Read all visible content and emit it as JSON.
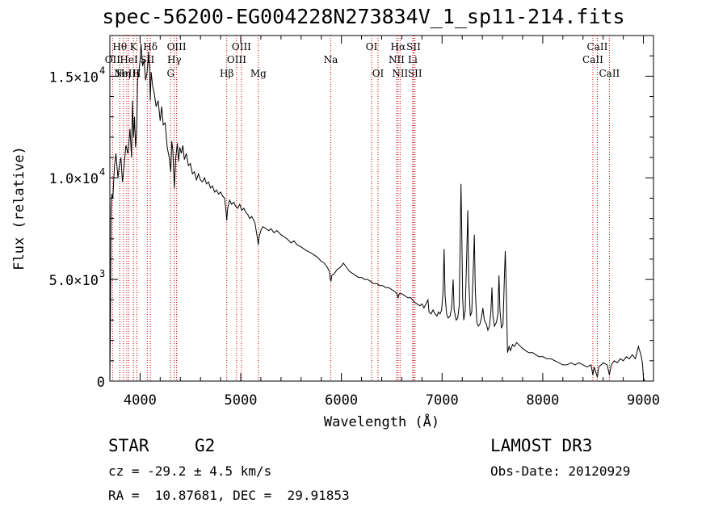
{
  "chart_data": {
    "type": "line",
    "title": "spec-56200-EG004228N273834V_1_sp11-214.fits",
    "xlabel": "Wavelength (Å)",
    "ylabel": "Flux (relative)",
    "xlim": [
      3700,
      9100
    ],
    "ylim": [
      0,
      17000
    ],
    "x_ticks": [
      {
        "value": 4000,
        "label": "4000"
      },
      {
        "value": 5000,
        "label": "5000"
      },
      {
        "value": 6000,
        "label": "6000"
      },
      {
        "value": 7000,
        "label": "7000"
      },
      {
        "value": 8000,
        "label": "8000"
      },
      {
        "value": 9000,
        "label": "9000"
      }
    ],
    "y_ticks": [
      {
        "value": 0,
        "base": "0",
        "exp": ""
      },
      {
        "value": 5000,
        "base": "5.0×10",
        "exp": "3"
      },
      {
        "value": 10000,
        "base": "1.0×10",
        "exp": "4"
      },
      {
        "value": 15000,
        "base": "1.5×10",
        "exp": "4"
      }
    ],
    "spectrum": [
      [
        3700,
        0
      ],
      [
        3705,
        2500
      ],
      [
        3712,
        8500
      ],
      [
        3720,
        9200
      ],
      [
        3730,
        9000
      ],
      [
        3745,
        10500
      ],
      [
        3760,
        11200
      ],
      [
        3780,
        10000
      ],
      [
        3795,
        10600
      ],
      [
        3810,
        11000
      ],
      [
        3825,
        9800
      ],
      [
        3840,
        10500
      ],
      [
        3860,
        11600
      ],
      [
        3880,
        11200
      ],
      [
        3900,
        12400
      ],
      [
        3915,
        11000
      ],
      [
        3925,
        13800
      ],
      [
        3935,
        12000
      ],
      [
        3945,
        13000
      ],
      [
        3955,
        11500
      ],
      [
        3968,
        12500
      ],
      [
        3975,
        14800
      ],
      [
        3990,
        15200
      ],
      [
        4000,
        15800
      ],
      [
        4010,
        16600
      ],
      [
        4025,
        15500
      ],
      [
        4040,
        15800
      ],
      [
        4055,
        14800
      ],
      [
        4070,
        15200
      ],
      [
        4085,
        16200
      ],
      [
        4095,
        15400
      ],
      [
        4101,
        13800
      ],
      [
        4110,
        15200
      ],
      [
        4125,
        14500
      ],
      [
        4140,
        14200
      ],
      [
        4160,
        13500
      ],
      [
        4180,
        13800
      ],
      [
        4200,
        12800
      ],
      [
        4215,
        13500
      ],
      [
        4230,
        12600
      ],
      [
        4250,
        12700
      ],
      [
        4270,
        11500
      ],
      [
        4290,
        11000
      ],
      [
        4305,
        10300
      ],
      [
        4315,
        11800
      ],
      [
        4325,
        11400
      ],
      [
        4340,
        9500
      ],
      [
        4355,
        11000
      ],
      [
        4370,
        11700
      ],
      [
        4383,
        10800
      ],
      [
        4395,
        11500
      ],
      [
        4410,
        11200
      ],
      [
        4425,
        11600
      ],
      [
        4440,
        10900
      ],
      [
        4460,
        11200
      ],
      [
        4480,
        10600
      ],
      [
        4500,
        10700
      ],
      [
        4520,
        10200
      ],
      [
        4540,
        10300
      ],
      [
        4560,
        9900
      ],
      [
        4580,
        10200
      ],
      [
        4600,
        9900
      ],
      [
        4620,
        9800
      ],
      [
        4640,
        10000
      ],
      [
        4660,
        9700
      ],
      [
        4680,
        9800
      ],
      [
        4700,
        9500
      ],
      [
        4720,
        9600
      ],
      [
        4740,
        9300
      ],
      [
        4760,
        9400
      ],
      [
        4780,
        9200
      ],
      [
        4800,
        9300
      ],
      [
        4820,
        9100
      ],
      [
        4840,
        9000
      ],
      [
        4855,
        8300
      ],
      [
        4861,
        7900
      ],
      [
        4870,
        8500
      ],
      [
        4890,
        8900
      ],
      [
        4910,
        8700
      ],
      [
        4930,
        8800
      ],
      [
        4950,
        8600
      ],
      [
        4970,
        8500
      ],
      [
        4990,
        8700
      ],
      [
        5010,
        8400
      ],
      [
        5030,
        8500
      ],
      [
        5050,
        8300
      ],
      [
        5070,
        8200
      ],
      [
        5090,
        8000
      ],
      [
        5110,
        8100
      ],
      [
        5140,
        7800
      ],
      [
        5167,
        7000
      ],
      [
        5175,
        6700
      ],
      [
        5183,
        7100
      ],
      [
        5200,
        7400
      ],
      [
        5220,
        7600
      ],
      [
        5250,
        7500
      ],
      [
        5280,
        7400
      ],
      [
        5300,
        7500
      ],
      [
        5330,
        7300
      ],
      [
        5360,
        7400
      ],
      [
        5400,
        7200
      ],
      [
        5430,
        7100
      ],
      [
        5460,
        7000
      ],
      [
        5500,
        6800
      ],
      [
        5530,
        6900
      ],
      [
        5560,
        6700
      ],
      [
        5600,
        6600
      ],
      [
        5630,
        6500
      ],
      [
        5660,
        6400
      ],
      [
        5700,
        6300
      ],
      [
        5730,
        6200
      ],
      [
        5760,
        6100
      ],
      [
        5800,
        5900
      ],
      [
        5830,
        5800
      ],
      [
        5860,
        5600
      ],
      [
        5880,
        5400
      ],
      [
        5890,
        5000
      ],
      [
        5896,
        4900
      ],
      [
        5905,
        5200
      ],
      [
        5930,
        5300
      ],
      [
        5960,
        5500
      ],
      [
        5990,
        5600
      ],
      [
        6020,
        5800
      ],
      [
        6050,
        5600
      ],
      [
        6080,
        5400
      ],
      [
        6110,
        5300
      ],
      [
        6140,
        5200
      ],
      [
        6170,
        5100
      ],
      [
        6200,
        5100
      ],
      [
        6230,
        5000
      ],
      [
        6260,
        5000
      ],
      [
        6290,
        4900
      ],
      [
        6320,
        4800
      ],
      [
        6350,
        4800
      ],
      [
        6380,
        4700
      ],
      [
        6410,
        4700
      ],
      [
        6440,
        4600
      ],
      [
        6470,
        4600
      ],
      [
        6500,
        4500
      ],
      [
        6530,
        4400
      ],
      [
        6550,
        4300
      ],
      [
        6563,
        4100
      ],
      [
        6575,
        4300
      ],
      [
        6600,
        4300
      ],
      [
        6630,
        4200
      ],
      [
        6660,
        4100
      ],
      [
        6690,
        4100
      ],
      [
        6720,
        3900
      ],
      [
        6750,
        3800
      ],
      [
        6780,
        3700
      ],
      [
        6800,
        3800
      ],
      [
        6820,
        3600
      ],
      [
        6840,
        3800
      ],
      [
        6860,
        4000
      ],
      [
        6870,
        3400
      ],
      [
        6890,
        3300
      ],
      [
        6910,
        3500
      ],
      [
        6930,
        3300
      ],
      [
        6950,
        3200
      ],
      [
        6965,
        3400
      ],
      [
        6980,
        3300
      ],
      [
        6995,
        3500
      ],
      [
        7010,
        4400
      ],
      [
        7020,
        6500
      ],
      [
        7030,
        4200
      ],
      [
        7045,
        3300
      ],
      [
        7060,
        3100
      ],
      [
        7080,
        3200
      ],
      [
        7095,
        3600
      ],
      [
        7110,
        5000
      ],
      [
        7120,
        3500
      ],
      [
        7140,
        3000
      ],
      [
        7155,
        3100
      ],
      [
        7170,
        3700
      ],
      [
        7180,
        6800
      ],
      [
        7188,
        9700
      ],
      [
        7195,
        7500
      ],
      [
        7205,
        4000
      ],
      [
        7215,
        3000
      ],
      [
        7230,
        3500
      ],
      [
        7245,
        6200
      ],
      [
        7255,
        8400
      ],
      [
        7265,
        5000
      ],
      [
        7280,
        3200
      ],
      [
        7295,
        3400
      ],
      [
        7310,
        5500
      ],
      [
        7320,
        7200
      ],
      [
        7330,
        4500
      ],
      [
        7345,
        2900
      ],
      [
        7360,
        2700
      ],
      [
        7375,
        2800
      ],
      [
        7390,
        3100
      ],
      [
        7405,
        3600
      ],
      [
        7420,
        3000
      ],
      [
        7440,
        2800
      ],
      [
        7455,
        2500
      ],
      [
        7470,
        2700
      ],
      [
        7485,
        3400
      ],
      [
        7495,
        4600
      ],
      [
        7505,
        3200
      ],
      [
        7520,
        2700
      ],
      [
        7540,
        2900
      ],
      [
        7555,
        3300
      ],
      [
        7565,
        5200
      ],
      [
        7575,
        3500
      ],
      [
        7590,
        2600
      ],
      [
        7605,
        2800
      ],
      [
        7620,
        5200
      ],
      [
        7628,
        6400
      ],
      [
        7640,
        4000
      ],
      [
        7650,
        1400
      ],
      [
        7665,
        1700
      ],
      [
        7680,
        1500
      ],
      [
        7700,
        1800
      ],
      [
        7720,
        1700
      ],
      [
        7740,
        1900
      ],
      [
        7760,
        1800
      ],
      [
        7780,
        1700
      ],
      [
        7800,
        1600
      ],
      [
        7830,
        1500
      ],
      [
        7860,
        1400
      ],
      [
        7900,
        1400
      ],
      [
        7930,
        1300
      ],
      [
        7960,
        1200
      ],
      [
        8000,
        1200
      ],
      [
        8040,
        1100
      ],
      [
        8080,
        1100
      ],
      [
        8120,
        1000
      ],
      [
        8160,
        900
      ],
      [
        8200,
        800
      ],
      [
        8240,
        800
      ],
      [
        8280,
        900
      ],
      [
        8320,
        800
      ],
      [
        8360,
        900
      ],
      [
        8400,
        800
      ],
      [
        8440,
        700
      ],
      [
        8480,
        800
      ],
      [
        8498,
        300
      ],
      [
        8510,
        700
      ],
      [
        8542,
        200
      ],
      [
        8555,
        700
      ],
      [
        8580,
        800
      ],
      [
        8600,
        900
      ],
      [
        8640,
        800
      ],
      [
        8662,
        300
      ],
      [
        8680,
        800
      ],
      [
        8710,
        1000
      ],
      [
        8740,
        900
      ],
      [
        8770,
        1100
      ],
      [
        8800,
        1000
      ],
      [
        8830,
        1200
      ],
      [
        8860,
        1100
      ],
      [
        8890,
        1300
      ],
      [
        8920,
        1100
      ],
      [
        8950,
        1700
      ],
      [
        8975,
        1300
      ],
      [
        8990,
        900
      ],
      [
        9000,
        200
      ],
      [
        9010,
        0
      ]
    ],
    "lines": [
      {
        "x": 3727,
        "label": "OII",
        "row": 1
      },
      {
        "x": 3798,
        "label": "Hθ",
        "row": 0
      },
      {
        "x": 3835,
        "label": "Hη",
        "row": 2
      },
      {
        "x": 3869,
        "label": "NeIII",
        "row": 2
      },
      {
        "x": 3889,
        "label": "HeI",
        "row": 1
      },
      {
        "x": 3934,
        "label": "K",
        "row": 0
      },
      {
        "x": 3968,
        "label": "H",
        "row": 2
      },
      {
        "x": 4072,
        "label": "SII",
        "row": 1
      },
      {
        "x": 4102,
        "label": "Hδ",
        "row": 0
      },
      {
        "x": 4304,
        "label": "G",
        "row": 2
      },
      {
        "x": 4340,
        "label": "Hγ",
        "row": 1
      },
      {
        "x": 4363,
        "label": "OIII",
        "row": 0
      },
      {
        "x": 4861,
        "label": "Hβ",
        "row": 2
      },
      {
        "x": 4959,
        "label": "OIII",
        "row": 1
      },
      {
        "x": 5007,
        "label": "OIII",
        "row": 0
      },
      {
        "x": 5175,
        "label": "Mg",
        "row": 2
      },
      {
        "x": 5894,
        "label": "Na",
        "row": 1
      },
      {
        "x": 6300,
        "label": "OI",
        "row": 0
      },
      {
        "x": 6364,
        "label": "OI",
        "row": 2
      },
      {
        "x": 6548,
        "label": "NII",
        "row": 1
      },
      {
        "x": 6563,
        "label": "Hα",
        "row": 0
      },
      {
        "x": 6583,
        "label": "NII",
        "row": 2
      },
      {
        "x": 6708,
        "label": "Li",
        "row": 1
      },
      {
        "x": 6717,
        "label": "SII",
        "row": 0
      },
      {
        "x": 6731,
        "label": "SII",
        "row": 2
      },
      {
        "x": 8498,
        "label": "CaII",
        "row": 1
      },
      {
        "x": 8542,
        "label": "CaII",
        "row": 0
      },
      {
        "x": 8662,
        "label": "CaII",
        "row": 2
      }
    ]
  },
  "info": {
    "object_class": "STAR",
    "subclass": "G2",
    "redshift_text": "cz = -29.2 ± 4.5 km/s",
    "coords_text": "RA =  10.87681, DEC =  29.91853",
    "survey": "LAMOST DR3",
    "obs_date": "Obs-Date: 20120929"
  }
}
